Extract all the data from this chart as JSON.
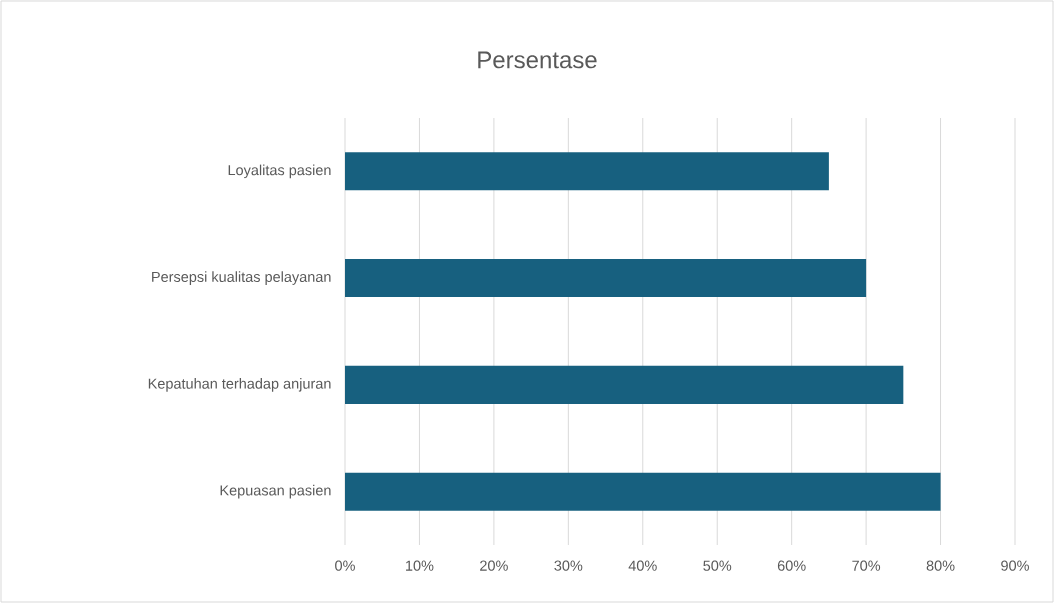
{
  "chart_data": {
    "type": "bar",
    "orientation": "horizontal",
    "title": "Persentase",
    "categories": [
      "Loyalitas pasien",
      "Persepsi kualitas pelayanan",
      "Kepatuhan terhadap anjuran",
      "Kepuasan pasien"
    ],
    "values": [
      65,
      70,
      75,
      80
    ],
    "color": "#17607f",
    "xlim": [
      0,
      90
    ],
    "xticks": [
      {
        "value": 0,
        "label": "0%"
      },
      {
        "value": 10,
        "label": "10%"
      },
      {
        "value": 20,
        "label": "20%"
      },
      {
        "value": 30,
        "label": "30%"
      },
      {
        "value": 40,
        "label": "40%"
      },
      {
        "value": 50,
        "label": "50%"
      },
      {
        "value": 60,
        "label": "60%"
      },
      {
        "value": 70,
        "label": "70%"
      },
      {
        "value": 80,
        "label": "80%"
      },
      {
        "value": 90,
        "label": "90%"
      }
    ],
    "grid": "x"
  }
}
